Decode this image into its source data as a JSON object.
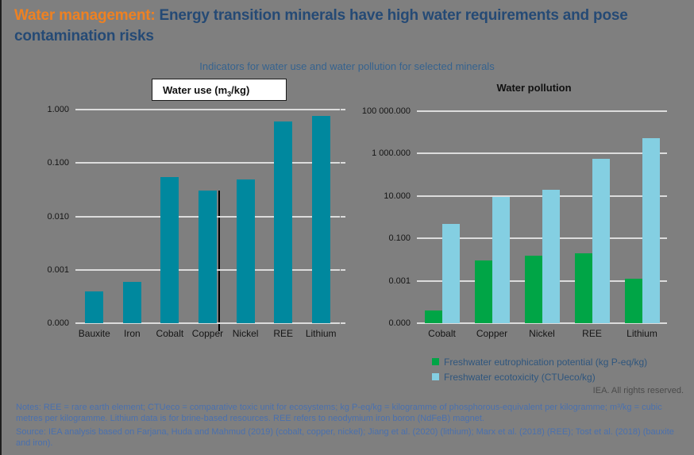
{
  "header": {
    "title_orange": "Water management:",
    "title_blue_line1": "Energy transition minerals have high water requirements and pose",
    "title_blue_line2": "contamination risks",
    "subtitle": "Indicators for water use and water pollution for selected minerals"
  },
  "chart_data": [
    {
      "type": "bar",
      "title": "Water use (m3/kg)",
      "title_parts": {
        "pre": "Water use (m",
        "sub": "3",
        "post": "/kg)"
      },
      "y_scale": "log",
      "ylim": [
        0.0001,
        1
      ],
      "y_ticks": [
        "1.000",
        "0.100",
        "0.010",
        "0.001",
        "0.000"
      ],
      "categories": [
        "Bauxite",
        "Iron",
        "Cobalt",
        "Copper",
        "Nickel",
        "REE",
        "Lithium"
      ],
      "values": [
        0.0004,
        0.0006,
        0.055,
        0.03,
        0.05,
        0.6,
        0.75
      ],
      "bar_color": "#00889e",
      "grid": true,
      "legend_position": "none"
    },
    {
      "type": "bar",
      "title": "Water pollution",
      "y_scale": "log",
      "ylim": [
        1e-05,
        100000
      ],
      "y_ticks": [
        "100 000.000",
        "1 000.000",
        "10.000",
        "0.100",
        "0.001",
        "0.000"
      ],
      "categories": [
        "Cobalt",
        "Copper",
        "Nickel",
        "REE",
        "Lithium"
      ],
      "series": [
        {
          "name": "Freshwater eutrophication potential (kg P-eq/kg)",
          "color": "#00a546",
          "values": [
            4e-05,
            0.0095,
            0.015,
            0.02,
            0.0013
          ]
        },
        {
          "name": "Freshwater ecotoxicity (CTUeco/kg)",
          "color": "#84cfe2",
          "values": [
            0.5,
            8.7,
            19,
            550,
            5500
          ]
        }
      ],
      "grid": true,
      "legend_position": "bottom"
    }
  ],
  "footer": {
    "rights": "IEA. All rights reserved."
  },
  "notes": {
    "notes_text": "Notes: REE = rare earth element; CTUeco = comparative toxic unit for ecosystems; kg P-eq/kg = kilogramme of phosphorous-equivalent per kilogramme; m³/kg = cubic metres per kilogramme. Lithium data is for brine-based resources. REE refers to neodymium iron boron (NdFeB) magnet.",
    "source_text": "Source: IEA analysis based on Farjana, Huda and Mahmud (2019) (cobalt, copper, nickel); Jiang et al. (2020) (lithium); Marx et al. (2018) (REE); Tost et al. (2018) (bauxite and iron)."
  },
  "colors": {
    "background": "#7f7f7f",
    "title_orange": "#ee8122",
    "title_blue": "#254a75",
    "subtitle_blue": "#36638f",
    "notes_blue": "#4a70ae",
    "teal_bar": "#00889e",
    "green_bar": "#00a546",
    "light_blue_bar": "#84cfe2",
    "gridline": "#dcdcdc"
  }
}
